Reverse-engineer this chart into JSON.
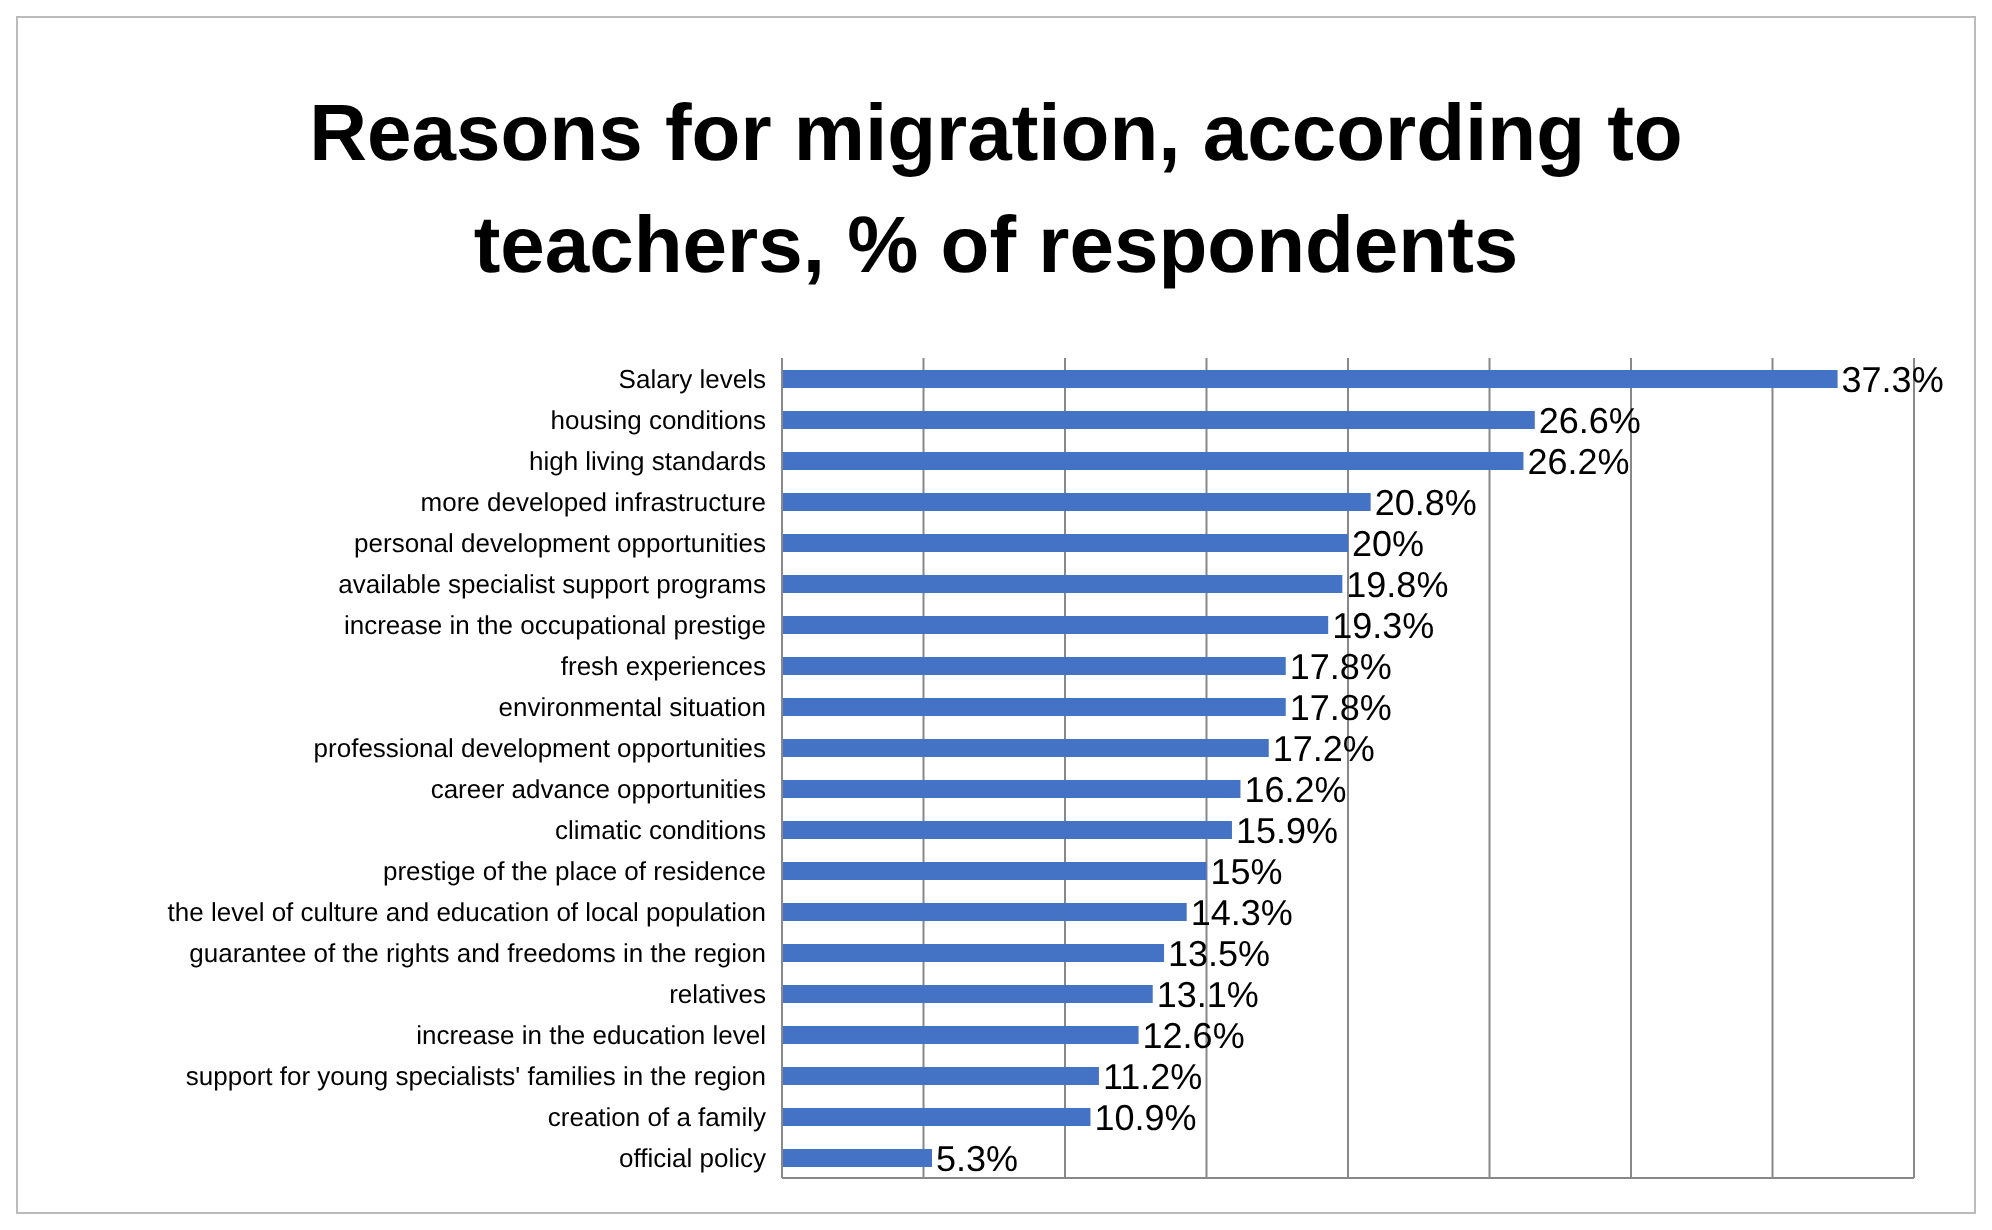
{
  "chart_data": {
    "type": "bar",
    "orientation": "horizontal",
    "title": "Reasons for migration, according to teachers, % of respondents",
    "categories": [
      "Salary levels",
      "housing conditions",
      "high living standards",
      "more developed infrastructure",
      "personal development opportunities",
      "available specialist support programs",
      "increase in the occupational prestige",
      "fresh experiences",
      "environmental situation",
      "professional development opportunities",
      "career advance opportunities",
      "climatic conditions",
      "prestige of the place of residence",
      "the level of culture and education of local population",
      "guarantee of the rights and freedoms in the region",
      "relatives",
      "increase in the education level",
      "support for young specialists' families in the region",
      "creation of a family",
      "official policy"
    ],
    "values": [
      37.3,
      26.6,
      26.2,
      20.8,
      20,
      19.8,
      19.3,
      17.8,
      17.8,
      17.2,
      16.2,
      15.9,
      15,
      14.3,
      13.5,
      13.1,
      12.6,
      11.2,
      10.9,
      5.3
    ],
    "value_labels": [
      "37.3%",
      "26.6%",
      "26.2%",
      "20.8%",
      "20%",
      "19.8%",
      "19.3%",
      "17.8%",
      "17.8%",
      "17.2%",
      "16.2%",
      "15.9%",
      "15%",
      "14.3%",
      "13.5%",
      "13.1%",
      "12.6%",
      "11.2%",
      "10.9%",
      "5.3%"
    ],
    "color": "#4472c4",
    "xlim": [
      0,
      40
    ],
    "xticks": [
      {
        "value": 0,
        "label": null
      },
      {
        "value": 5,
        "label": null
      },
      {
        "value": 10,
        "label": null
      },
      {
        "value": 15,
        "label": null
      },
      {
        "value": 20,
        "label": null
      },
      {
        "value": 25,
        "label": null
      },
      {
        "value": 30,
        "label": null
      },
      {
        "value": 35,
        "label": null
      },
      {
        "value": 40,
        "label": null
      }
    ],
    "tick_labels": "y",
    "grid": "x",
    "legend": false
  }
}
